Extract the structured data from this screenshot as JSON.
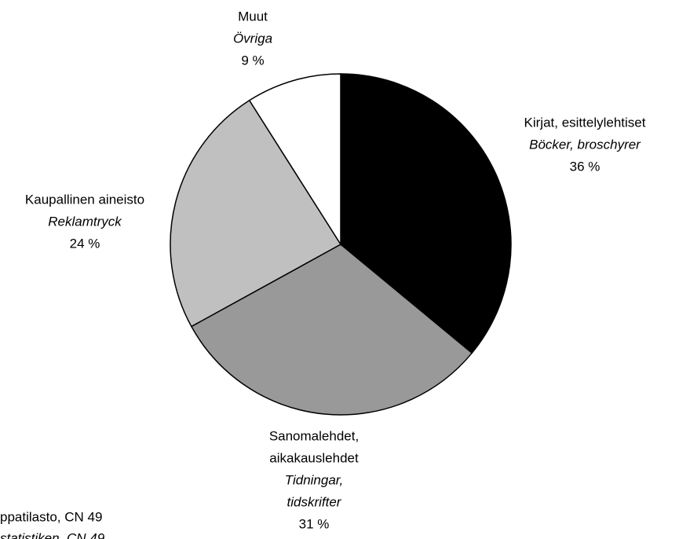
{
  "chart_data": {
    "type": "pie",
    "labels": [
      [
        "Kirjat, esittelylehtiset"
      ],
      [
        "Sanomalehdet,",
        "aikakauslehdet"
      ],
      [
        "Kaupallinen aineisto"
      ],
      [
        "Muut"
      ]
    ],
    "labels_sv": [
      [
        "Böcker, broschyrer"
      ],
      [
        "Tidningar,",
        "tidskrifter"
      ],
      [
        "Reklamtryck"
      ],
      [
        "Övriga"
      ]
    ],
    "values": [
      36,
      31,
      24,
      9
    ],
    "value_labels": [
      "36 %",
      "31 %",
      "24 %",
      "9 %"
    ],
    "colors": [
      "#000000",
      "#999999",
      "#c0c0c0",
      "#ffffff"
    ],
    "source": [
      "ppatilasto, CN 49",
      "statistiken, CN 49"
    ]
  }
}
